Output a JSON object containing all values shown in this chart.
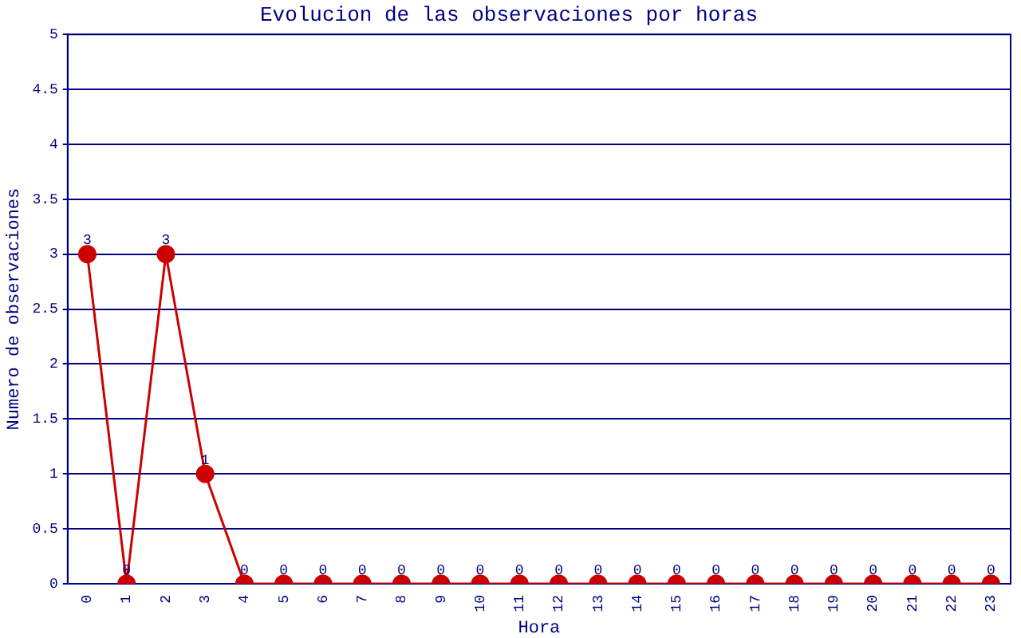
{
  "chart_data": {
    "type": "line",
    "title": "Evolucion de las observaciones por horas",
    "xlabel": "Hora",
    "ylabel": "Numero de observaciones",
    "categories": [
      "0",
      "1",
      "2",
      "3",
      "4",
      "5",
      "6",
      "7",
      "8",
      "9",
      "10",
      "11",
      "12",
      "13",
      "14",
      "15",
      "16",
      "17",
      "18",
      "19",
      "20",
      "21",
      "22",
      "23"
    ],
    "series": [
      {
        "color": "#cc0000",
        "values": [
          3,
          0,
          3,
          1,
          0,
          0,
          0,
          0,
          0,
          0,
          0,
          0,
          0,
          0,
          0,
          0,
          0,
          0,
          0,
          0,
          0,
          0,
          0,
          0
        ]
      }
    ],
    "ylim": [
      0,
      5
    ],
    "yticks": [
      0,
      0.5,
      1,
      1.5,
      2,
      2.5,
      3,
      3.5,
      4,
      4.5,
      5
    ],
    "grid": "y",
    "legend": false,
    "marker": "circle",
    "line_style": "solid",
    "data_labels": true
  }
}
